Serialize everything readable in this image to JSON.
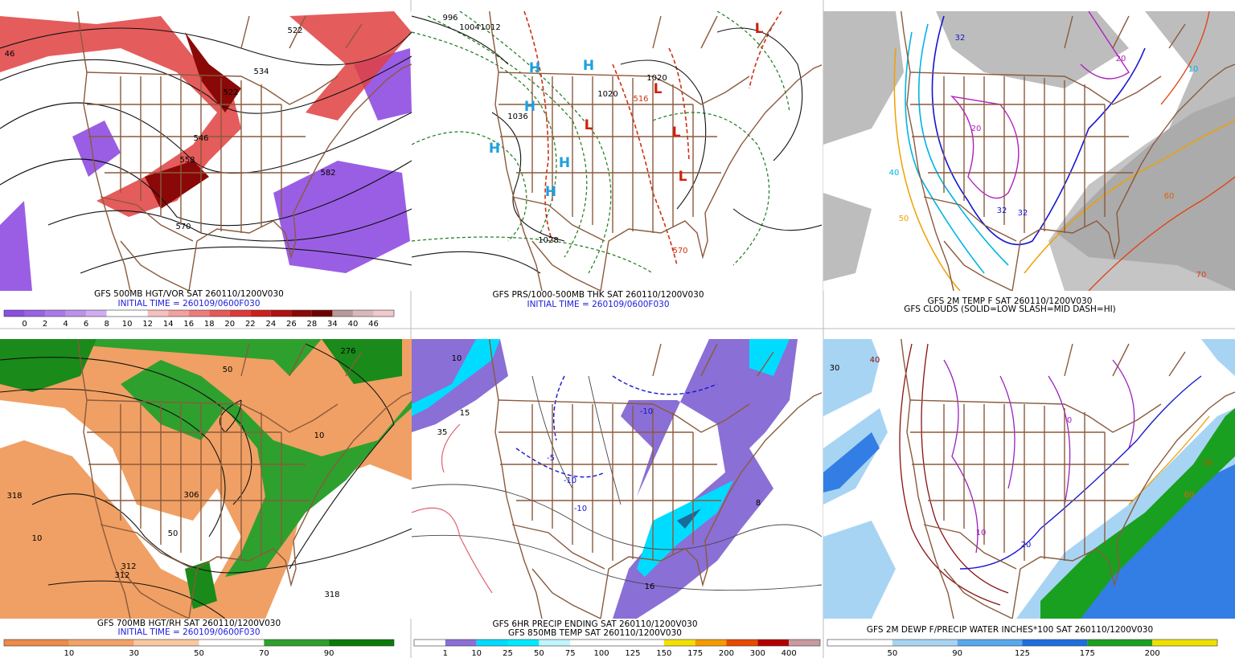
{
  "panels": [
    {
      "caption": [
        "GFS 500MB HGT/VOR SAT 260110/1200V030",
        "INITIAL TIME = 260109/0600F030"
      ],
      "map_labels": [
        "46",
        "522",
        "534",
        "522",
        "546",
        "558",
        "570",
        "582"
      ],
      "colorbar": {
        "labels": [
          "0",
          "2",
          "4",
          "6",
          "8",
          "10",
          "12",
          "14",
          "16",
          "18",
          "20",
          "22",
          "24",
          "26",
          "28",
          "34",
          "40",
          "46"
        ],
        "colors": [
          "#8a4fe0",
          "#9a62e6",
          "#ab78ea",
          "#bd90ee",
          "#d0acf3",
          "#ffffff",
          "#ffffff",
          "#f7c0c0",
          "#f2a0a0",
          "#ec7c7c",
          "#e55a5a",
          "#dc3838",
          "#cc1e1e",
          "#b01010",
          "#8a0808",
          "#6e0000",
          "#b89a9a",
          "#d9b8bb",
          "#f2c8cc"
        ]
      }
    },
    {
      "caption": [
        "GFS PRS/1000-500MB THK SAT 260110/1200V030",
        "INITIAL TIME = 260109/0600F030"
      ],
      "map_labels": [
        "996",
        "1004",
        "1012",
        "1020",
        "1028",
        "1036",
        "1020",
        "570",
        "516",
        "H",
        "H",
        "H",
        "H",
        "H",
        "H",
        "L",
        "L",
        "L",
        "L",
        "L"
      ]
    },
    {
      "caption": [
        "GFS 2M TEMP F SAT 260110/1200V030",
        "GFS CLOUDS (SOLID=LOW SLASH=MID DASH=HI)"
      ],
      "map_labels": [
        "32",
        "32",
        "20",
        "20",
        "32",
        "40",
        "50",
        "60",
        "70",
        "10"
      ]
    },
    {
      "caption": [
        "GFS 700MB HGT/RH SAT 260110/1200V030",
        "INITIAL TIME = 260109/0600F030"
      ],
      "map_labels": [
        "318",
        "312",
        "312",
        "306",
        "276",
        "50",
        "10",
        "318",
        "10",
        "50"
      ],
      "colorbar": {
        "labels": [
          "10",
          "30",
          "50",
          "70",
          "90"
        ],
        "colors": [
          "#ee8a4a",
          "#f3a26a",
          "#f8c8a0",
          "#ffffff",
          "#2ea02e",
          "#0a7a0a"
        ]
      }
    },
    {
      "caption": [
        "GFS 6HR PRECIP ENDING SAT 260110/1200V030",
        "GFS 850MB TEMP SAT 260110/1200V030"
      ],
      "map_labels": [
        "10",
        "15",
        "35",
        "-10",
        "-10",
        "-10",
        "8",
        "16",
        "-5"
      ],
      "colorbar": {
        "labels": [
          "1",
          "10",
          "25",
          "50",
          "75",
          "100",
          "125",
          "150",
          "175",
          "200",
          "300",
          "400"
        ],
        "colors": [
          "#ffffff",
          "#8a6fd6",
          "#00dcff",
          "#00eaff",
          "#bff6ff",
          "#ffffff",
          "#ffffff",
          "#ffffff",
          "#f4e000",
          "#f59b00",
          "#e84a00",
          "#b40000",
          "#c89aa0"
        ]
      }
    },
    {
      "caption": [
        "GFS 2M DEWP F/PRECIP WATER INCHES*100 SAT 260110/1200V030"
      ],
      "map_labels": [
        "40",
        "30",
        "50",
        "60",
        "10",
        "20",
        "0"
      ],
      "colorbar": {
        "labels": [
          "50",
          "90",
          "125",
          "175",
          "200"
        ],
        "colors": [
          "#ffffff",
          "#a8d4f4",
          "#5aa8ec",
          "#1e6ee0",
          "#1aa020",
          "#f0e000"
        ]
      }
    }
  ]
}
